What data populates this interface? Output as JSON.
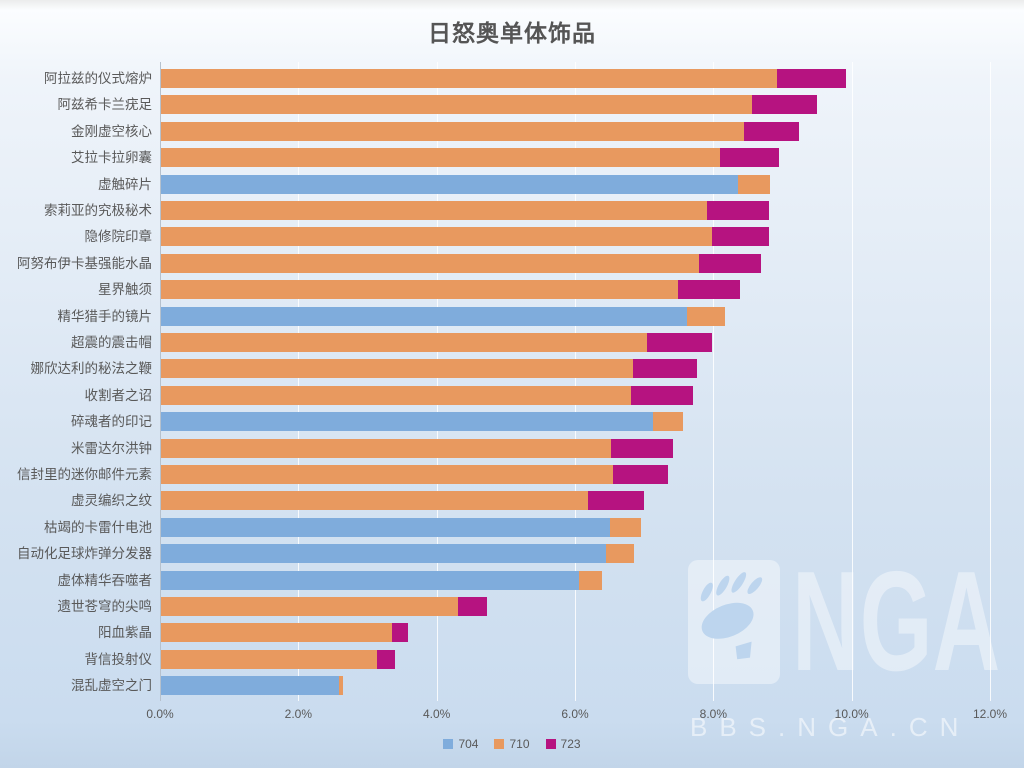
{
  "watermark": {
    "logo_text": "NGA",
    "site_text": "BBS.NGA.CN"
  },
  "chart_data": {
    "type": "bar",
    "orientation": "horizontal",
    "stacked": true,
    "title": "日怒奥单体饰品",
    "xlabel": "",
    "ylabel": "",
    "xlim": [
      0,
      12
    ],
    "x_ticks": [
      "0.0%",
      "2.0%",
      "4.0%",
      "6.0%",
      "8.0%",
      "10.0%",
      "12.0%"
    ],
    "grid": true,
    "legend_position": "bottom",
    "legend": [
      {
        "name": "704",
        "color": "#7FACDC"
      },
      {
        "name": "710",
        "color": "#E8995F"
      },
      {
        "name": "723",
        "color": "#B61380"
      }
    ],
    "rows": [
      {
        "label": "阿拉兹的仪式熔炉",
        "segments": [
          {
            "series": "710",
            "value": 8.9
          },
          {
            "series": "723",
            "value": 1.0
          }
        ]
      },
      {
        "label": "阿兹希卡兰疣足",
        "segments": [
          {
            "series": "710",
            "value": 8.55
          },
          {
            "series": "723",
            "value": 0.93
          }
        ]
      },
      {
        "label": "金刚虚空核心",
        "segments": [
          {
            "series": "710",
            "value": 8.43
          },
          {
            "series": "723",
            "value": 0.8
          }
        ]
      },
      {
        "label": "艾拉卡拉卵囊",
        "segments": [
          {
            "series": "710",
            "value": 8.08
          },
          {
            "series": "723",
            "value": 0.85
          }
        ]
      },
      {
        "label": "虚触碎片",
        "segments": [
          {
            "series": "704",
            "value": 8.34
          },
          {
            "series": "710",
            "value": 0.46
          }
        ]
      },
      {
        "label": "索莉亚的究极秘术",
        "segments": [
          {
            "series": "710",
            "value": 7.9
          },
          {
            "series": "723",
            "value": 0.89
          }
        ]
      },
      {
        "label": "隐修院印章",
        "segments": [
          {
            "series": "710",
            "value": 7.97
          },
          {
            "series": "723",
            "value": 0.82
          }
        ]
      },
      {
        "label": "阿努布伊卡基强能水晶",
        "segments": [
          {
            "series": "710",
            "value": 7.78
          },
          {
            "series": "723",
            "value": 0.89
          }
        ]
      },
      {
        "label": "星界触须",
        "segments": [
          {
            "series": "710",
            "value": 7.48
          },
          {
            "series": "723",
            "value": 0.89
          }
        ]
      },
      {
        "label": "精华猎手的镜片",
        "segments": [
          {
            "series": "704",
            "value": 7.6
          },
          {
            "series": "710",
            "value": 0.55
          }
        ]
      },
      {
        "label": "超震的震击帽",
        "segments": [
          {
            "series": "710",
            "value": 7.02
          },
          {
            "series": "723",
            "value": 0.94
          }
        ]
      },
      {
        "label": "娜欣达利的秘法之鞭",
        "segments": [
          {
            "series": "710",
            "value": 6.82
          },
          {
            "series": "723",
            "value": 0.93
          }
        ]
      },
      {
        "label": "收割者之诏",
        "segments": [
          {
            "series": "710",
            "value": 6.79
          },
          {
            "series": "723",
            "value": 0.9
          }
        ]
      },
      {
        "label": "碎魂者的印记",
        "segments": [
          {
            "series": "704",
            "value": 7.12
          },
          {
            "series": "710",
            "value": 0.43
          }
        ]
      },
      {
        "label": "米雷达尔洪钟",
        "segments": [
          {
            "series": "710",
            "value": 6.5
          },
          {
            "series": "723",
            "value": 0.9
          }
        ]
      },
      {
        "label": "信封里的迷你邮件元素",
        "segments": [
          {
            "series": "710",
            "value": 6.54
          },
          {
            "series": "723",
            "value": 0.79
          }
        ]
      },
      {
        "label": "虚灵编织之纹",
        "segments": [
          {
            "series": "710",
            "value": 6.17
          },
          {
            "series": "723",
            "value": 0.81
          }
        ]
      },
      {
        "label": "枯竭的卡雷什电池",
        "segments": [
          {
            "series": "704",
            "value": 6.49
          },
          {
            "series": "710",
            "value": 0.45
          }
        ]
      },
      {
        "label": "自动化足球炸弹分发器",
        "segments": [
          {
            "series": "704",
            "value": 6.43
          },
          {
            "series": "710",
            "value": 0.41
          }
        ]
      },
      {
        "label": "虚体精华吞噬者",
        "segments": [
          {
            "series": "704",
            "value": 6.05
          },
          {
            "series": "710",
            "value": 0.32
          }
        ]
      },
      {
        "label": "遗世苍穹的尖鸣",
        "segments": [
          {
            "series": "710",
            "value": 4.29
          },
          {
            "series": "723",
            "value": 0.43
          }
        ]
      },
      {
        "label": "阳血紫晶",
        "segments": [
          {
            "series": "710",
            "value": 3.34
          },
          {
            "series": "723",
            "value": 0.23
          }
        ]
      },
      {
        "label": "背信投射仪",
        "segments": [
          {
            "series": "710",
            "value": 3.13
          },
          {
            "series": "723",
            "value": 0.26
          }
        ]
      },
      {
        "label": "混乱虚空之门",
        "segments": [
          {
            "series": "704",
            "value": 2.57
          },
          {
            "series": "710",
            "value": 0.06
          }
        ]
      }
    ]
  }
}
